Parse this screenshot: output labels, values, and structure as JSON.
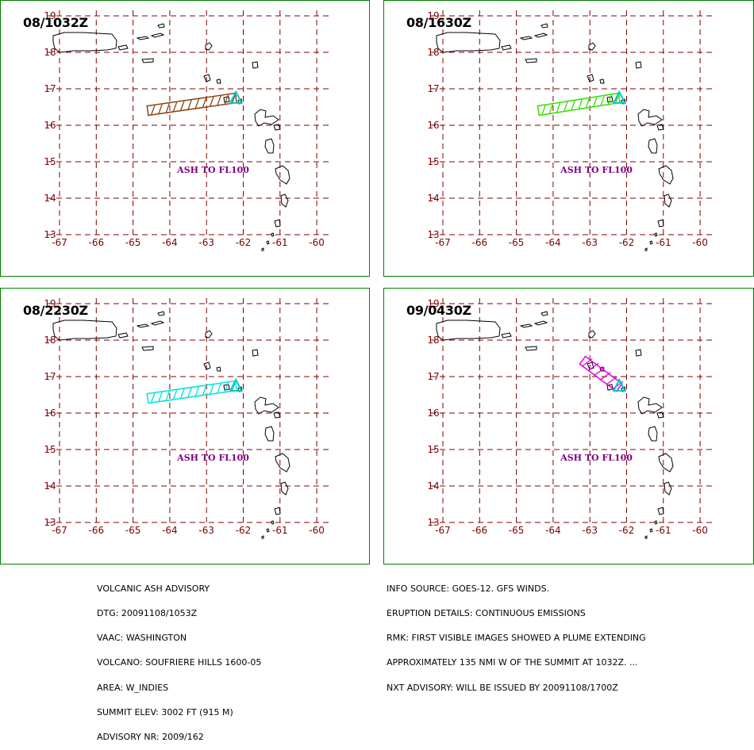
{
  "colors": {
    "panel_border": "#008000",
    "grid": "#800000",
    "coast": "#000000",
    "volcano": "#00c8c8",
    "label": "#800080"
  },
  "map": {
    "lon_ticks": [
      "-67",
      "-66",
      "-65",
      "-64",
      "-63",
      "-62",
      "-61",
      "-60"
    ],
    "lat_ticks": [
      "19",
      "18",
      "17",
      "16",
      "15",
      "14",
      "13"
    ]
  },
  "panels": [
    {
      "time": "08/1032Z",
      "ash_label": "ASH TO FL100",
      "plume_color": "#8b4513",
      "plume": {
        "from": [
          -64.6,
          16.4
        ],
        "to": [
          -62.2,
          16.75
        ]
      }
    },
    {
      "time": "08/1630Z",
      "ash_label": "ASH  TO  FL100",
      "plume_color": "#33dd00",
      "plume": {
        "from": [
          -64.4,
          16.4
        ],
        "to": [
          -62.2,
          16.75
        ]
      }
    },
    {
      "time": "08/2230Z",
      "ash_label": "ASH TO FL100",
      "plume_color": "#00e0e0",
      "plume": {
        "from": [
          -64.6,
          16.4
        ],
        "to": [
          -62.2,
          16.75
        ]
      }
    },
    {
      "time": "09/0430Z",
      "ash_label": "ASH TO FL100",
      "plume_color": "#e000e0",
      "plume": {
        "from": [
          -63.2,
          17.45
        ],
        "to": [
          -62.2,
          16.7
        ]
      }
    }
  ],
  "advisory_left": [
    "VOLCANIC ASH ADVISORY",
    "DTG: 20091108/1053Z",
    "VAAC: WASHINGTON",
    "VOLCANO: SOUFRIERE HILLS 1600-05",
    "AREA: W_INDIES",
    "SUMMIT ELEV: 3002 FT (915 M)",
    "ADVISORY NR: 2009/162"
  ],
  "advisory_right": [
    "INFO SOURCE: GOES-12. GFS WINDS.",
    "ERUPTION DETAILS: CONTINUOUS EMISSIONS",
    "RMK: FIRST VISIBLE IMAGES SHOWED A PLUME EXTENDING",
    "APPROXIMATELY 135 NMI W OF THE SUMMIT AT 1032Z. ...",
    "NXT ADVISORY: WILL BE ISSUED BY 20091108/1700Z"
  ]
}
